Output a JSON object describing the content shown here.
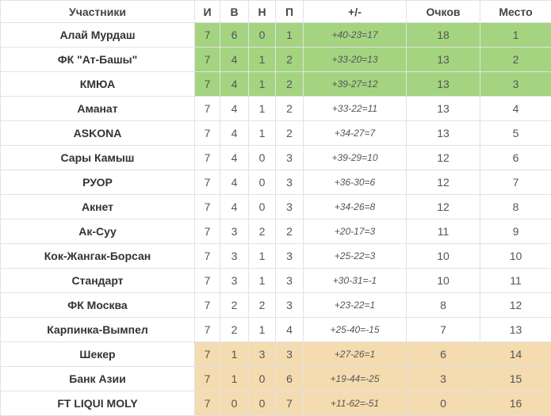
{
  "headers": [
    "Участники",
    "И",
    "В",
    "Н",
    "П",
    "+/-",
    "Очков",
    "Место"
  ],
  "colors": {
    "promotion": "#a4d480",
    "relegation": "#f4dcb0"
  },
  "rows": [
    {
      "team": "Алай Мурдаш",
      "p": "7",
      "w": "6",
      "d": "0",
      "l": "1",
      "diff": "+40-23=17",
      "pts": "18",
      "pos": "1",
      "zone": "green"
    },
    {
      "team": "ФК \"Ат-Башы\"",
      "p": "7",
      "w": "4",
      "d": "1",
      "l": "2",
      "diff": "+33-20=13",
      "pts": "13",
      "pos": "2",
      "zone": "green"
    },
    {
      "team": "КМЮА",
      "p": "7",
      "w": "4",
      "d": "1",
      "l": "2",
      "diff": "+39-27=12",
      "pts": "13",
      "pos": "3",
      "zone": "green"
    },
    {
      "team": "Аманат",
      "p": "7",
      "w": "4",
      "d": "1",
      "l": "2",
      "diff": "+33-22=11",
      "pts": "13",
      "pos": "4",
      "zone": ""
    },
    {
      "team": "ASKONA",
      "p": "7",
      "w": "4",
      "d": "1",
      "l": "2",
      "diff": "+34-27=7",
      "pts": "13",
      "pos": "5",
      "zone": ""
    },
    {
      "team": "Сары Камыш",
      "p": "7",
      "w": "4",
      "d": "0",
      "l": "3",
      "diff": "+39-29=10",
      "pts": "12",
      "pos": "6",
      "zone": ""
    },
    {
      "team": "РУОР",
      "p": "7",
      "w": "4",
      "d": "0",
      "l": "3",
      "diff": "+36-30=6",
      "pts": "12",
      "pos": "7",
      "zone": ""
    },
    {
      "team": "Акнет",
      "p": "7",
      "w": "4",
      "d": "0",
      "l": "3",
      "diff": "+34-26=8",
      "pts": "12",
      "pos": "8",
      "zone": ""
    },
    {
      "team": "Ак-Суу",
      "p": "7",
      "w": "3",
      "d": "2",
      "l": "2",
      "diff": "+20-17=3",
      "pts": "11",
      "pos": "9",
      "zone": ""
    },
    {
      "team": "Кок-Жангак-Борсан",
      "p": "7",
      "w": "3",
      "d": "1",
      "l": "3",
      "diff": "+25-22=3",
      "pts": "10",
      "pos": "10",
      "zone": ""
    },
    {
      "team": "Стандарт",
      "p": "7",
      "w": "3",
      "d": "1",
      "l": "3",
      "diff": "+30-31=-1",
      "pts": "10",
      "pos": "11",
      "zone": ""
    },
    {
      "team": "ФК Москва",
      "p": "7",
      "w": "2",
      "d": "2",
      "l": "3",
      "diff": "+23-22=1",
      "pts": "8",
      "pos": "12",
      "zone": ""
    },
    {
      "team": "Карпинка-Вымпел",
      "p": "7",
      "w": "2",
      "d": "1",
      "l": "4",
      "diff": "+25-40=-15",
      "pts": "7",
      "pos": "13",
      "zone": ""
    },
    {
      "team": "Шекер",
      "p": "7",
      "w": "1",
      "d": "3",
      "l": "3",
      "diff": "+27-26=1",
      "pts": "6",
      "pos": "14",
      "zone": "orange"
    },
    {
      "team": "Банк Азии",
      "p": "7",
      "w": "1",
      "d": "0",
      "l": "6",
      "diff": "+19-44=-25",
      "pts": "3",
      "pos": "15",
      "zone": "orange"
    },
    {
      "team": "FT LIQUI MOLY",
      "p": "7",
      "w": "0",
      "d": "0",
      "l": "7",
      "diff": "+11-62=-51",
      "pts": "0",
      "pos": "16",
      "zone": "orange"
    }
  ]
}
